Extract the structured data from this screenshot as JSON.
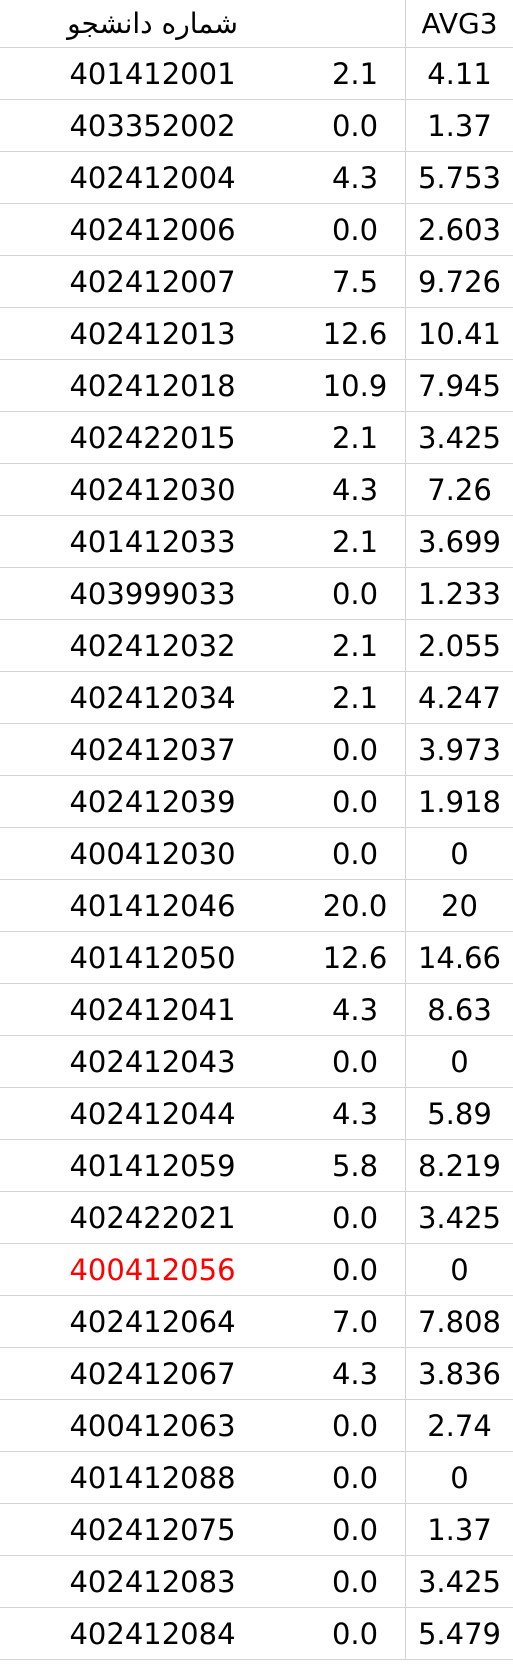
{
  "header": {
    "student_id": "شماره دانشجو",
    "value": "",
    "avg": "AVG3"
  },
  "rows": [
    {
      "id": "401412001",
      "value": "2.1",
      "avg": "4.11"
    },
    {
      "id": "403352002",
      "value": "0.0",
      "avg": "1.37"
    },
    {
      "id": "402412004",
      "value": "4.3",
      "avg": "5.753"
    },
    {
      "id": "402412006",
      "value": "0.0",
      "avg": "2.603"
    },
    {
      "id": "402412007",
      "value": "7.5",
      "avg": "9.726"
    },
    {
      "id": "402412013",
      "value": "12.6",
      "avg": "10.41"
    },
    {
      "id": "402412018",
      "value": "10.9",
      "avg": "7.945"
    },
    {
      "id": "402422015",
      "value": "2.1",
      "avg": "3.425"
    },
    {
      "id": "402412030",
      "value": "4.3",
      "avg": "7.26"
    },
    {
      "id": "401412033",
      "value": "2.1",
      "avg": "3.699"
    },
    {
      "id": "403999033",
      "value": "0.0",
      "avg": "1.233"
    },
    {
      "id": "402412032",
      "value": "2.1",
      "avg": "2.055"
    },
    {
      "id": "402412034",
      "value": "2.1",
      "avg": "4.247"
    },
    {
      "id": "402412037",
      "value": "0.0",
      "avg": "3.973"
    },
    {
      "id": "402412039",
      "value": "0.0",
      "avg": "1.918"
    },
    {
      "id": "400412030",
      "value": "0.0",
      "avg": "0"
    },
    {
      "id": "401412046",
      "value": "20.0",
      "avg": "20"
    },
    {
      "id": "401412050",
      "value": "12.6",
      "avg": "14.66"
    },
    {
      "id": "402412041",
      "value": "4.3",
      "avg": "8.63"
    },
    {
      "id": "402412043",
      "value": "0.0",
      "avg": "0"
    },
    {
      "id": "402412044",
      "value": "4.3",
      "avg": "5.89"
    },
    {
      "id": "401412059",
      "value": "5.8",
      "avg": "8.219"
    },
    {
      "id": "402422021",
      "value": "0.0",
      "avg": "3.425"
    },
    {
      "id": "400412056",
      "value": "0.0",
      "avg": "0",
      "highlight": "#ff0000"
    },
    {
      "id": "402412064",
      "value": "7.0",
      "avg": "7.808"
    },
    {
      "id": "402412067",
      "value": "4.3",
      "avg": "3.836"
    },
    {
      "id": "400412063",
      "value": "0.0",
      "avg": "2.74"
    },
    {
      "id": "401412088",
      "value": "0.0",
      "avg": "0"
    },
    {
      "id": "402412075",
      "value": "0.0",
      "avg": "1.37"
    },
    {
      "id": "402412083",
      "value": "0.0",
      "avg": "3.425"
    },
    {
      "id": "402412084",
      "value": "0.0",
      "avg": "5.479"
    }
  ]
}
